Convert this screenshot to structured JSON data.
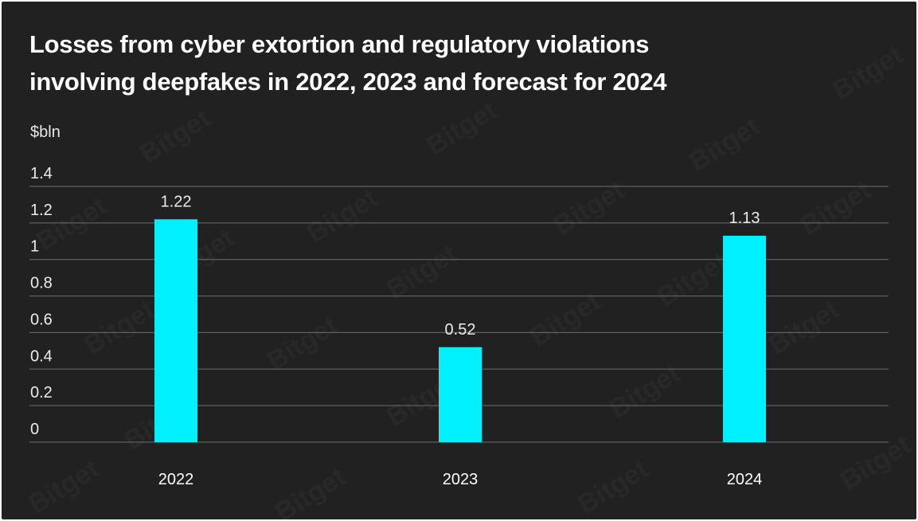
{
  "header": {
    "title_line1": "Losses from cyber extortion and regulatory violations",
    "title_line2": "involving deepfakes in 2022, 2023 and forecast for 2024"
  },
  "watermark": "Bitget",
  "colors": {
    "background": "#212121",
    "bar": "#00f0ff",
    "gridline": "#6e6e6e",
    "text": "#ffffff"
  },
  "chart_data": {
    "type": "bar",
    "title": "Losses from cyber extortion and regulatory violations involving deepfakes in 2022, 2023 and forecast for 2024",
    "ylabel": "$bln",
    "xlabel": "",
    "categories": [
      "2022",
      "2023",
      "2024"
    ],
    "values": [
      1.22,
      0.52,
      1.13
    ],
    "data_labels": [
      "1.22",
      "0.52",
      "1.13"
    ],
    "yticks": [
      0,
      0.2,
      0.4,
      0.6,
      0.8,
      1,
      1.2,
      1.4
    ],
    "ytick_labels": [
      "0",
      "0.2",
      "0.4",
      "0.6",
      "0.8",
      "1",
      "1.2",
      "1.4"
    ],
    "ylim": [
      0,
      1.4
    ],
    "grid": true,
    "legend": "none"
  }
}
